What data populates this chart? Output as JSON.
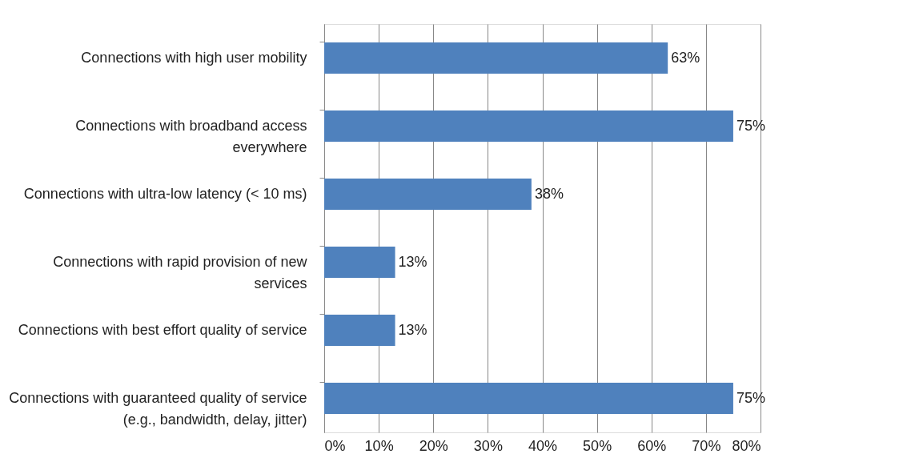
{
  "chart_data": {
    "type": "bar",
    "orientation": "horizontal",
    "categories": [
      "Connections with high user mobility",
      "Connections with broadband access\neverywhere",
      "Connections with ultra-low latency (< 10 ms)",
      "Connections with rapid provision of new\nservices",
      "Connections with best effort quality of service",
      "Connections with guaranteed quality of service\n(e.g., bandwidth, delay, jitter)"
    ],
    "values": [
      63,
      75,
      38,
      13,
      13,
      75
    ],
    "value_labels": [
      "63%",
      "75%",
      "38%",
      "13%",
      "13%",
      "75%"
    ],
    "color": "#4f81bd",
    "xlim": [
      0,
      80
    ],
    "xticks": [
      {
        "value": 0,
        "label": "0%"
      },
      {
        "value": 10,
        "label": "10%"
      },
      {
        "value": 20,
        "label": "20%"
      },
      {
        "value": 30,
        "label": "30%"
      },
      {
        "value": 40,
        "label": "40%"
      },
      {
        "value": 50,
        "label": "50%"
      },
      {
        "value": 60,
        "label": "60%"
      },
      {
        "value": 70,
        "label": "70%"
      },
      {
        "value": 80,
        "label": "80%"
      }
    ],
    "grid": "x"
  }
}
